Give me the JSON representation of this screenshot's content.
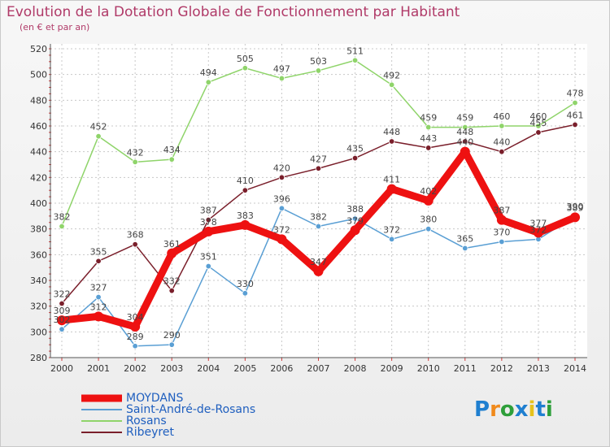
{
  "header": {
    "title": "Evolution de la Dotation Globale de Fonctionnement par Habitant",
    "subtitle": "(en € et par an)"
  },
  "logo": {
    "text": "Proxiti",
    "colors": [
      "#1f7fd0",
      "#f08a1c",
      "#2e9f3a",
      "#1f7fd0",
      "#e6c21c",
      "#1f7fd0",
      "#2e9f3a"
    ]
  },
  "chart_data": {
    "type": "line",
    "x": [
      "2000",
      "2001",
      "2002",
      "2003",
      "2004",
      "2005",
      "2006",
      "2007",
      "2008",
      "2009",
      "2010",
      "2011",
      "2012",
      "2013",
      "2014"
    ],
    "ylim": [
      280,
      520
    ],
    "yticks": [
      280,
      300,
      320,
      340,
      360,
      380,
      400,
      420,
      440,
      460,
      480,
      500,
      520
    ],
    "grid": true,
    "legend_position": "bottom-left",
    "series": [
      {
        "name": "Rosans",
        "color": "#8fd46a",
        "width": 1.5,
        "values": [
          382,
          452,
          432,
          434,
          494,
          505,
          497,
          503,
          511,
          492,
          459,
          459,
          460,
          460,
          478
        ]
      },
      {
        "name": "Ribeyret",
        "color": "#7a1f2b",
        "width": 1.5,
        "values": [
          322,
          355,
          368,
          332,
          387,
          410,
          420,
          427,
          435,
          448,
          443,
          448,
          440,
          455,
          461
        ]
      },
      {
        "name": "Saint-André-de-Rosans",
        "color": "#5a9fd4",
        "width": 1.5,
        "values": [
          302,
          327,
          289,
          290,
          351,
          330,
          396,
          382,
          388,
          372,
          380,
          365,
          370,
          372,
          390
        ]
      },
      {
        "name": "MOYDANS",
        "color": "#ee1111",
        "width": 9,
        "values": [
          309,
          312,
          304,
          361,
          378,
          383,
          372,
          347,
          379,
          411,
          402,
          440,
          387,
          377,
          389
        ]
      }
    ],
    "legend": [
      {
        "name": "MOYDANS",
        "color": "#ee1111",
        "thick": true
      },
      {
        "name": "Saint-André-de-Rosans",
        "color": "#5a9fd4",
        "thick": false
      },
      {
        "name": "Rosans",
        "color": "#8fd46a",
        "thick": false
      },
      {
        "name": "Ribeyret",
        "color": "#7a1f2b",
        "thick": false
      }
    ]
  }
}
